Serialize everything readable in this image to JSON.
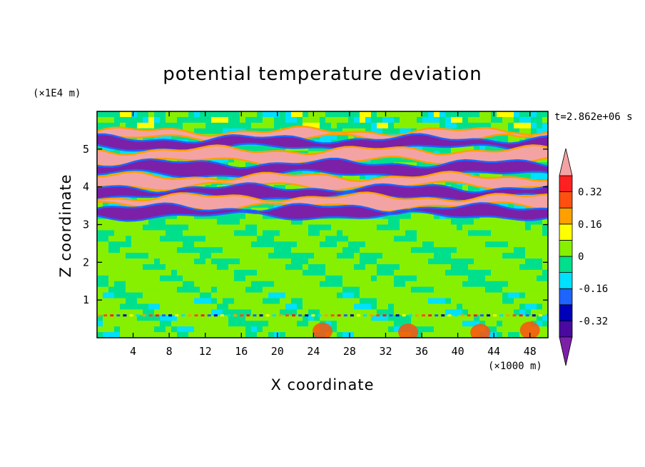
{
  "chart_data": {
    "type": "contour",
    "title": "potential temperature deviation",
    "xlabel": "X coordinate",
    "ylabel": "Z coordinate",
    "x_unit": "(×1000 m)",
    "y_unit": "(×1E4 m)",
    "time_label": "t=2.862e+06 s",
    "xlim": [
      0,
      50
    ],
    "ylim": [
      0,
      6
    ],
    "x_ticks": [
      4,
      8,
      12,
      16,
      20,
      24,
      28,
      32,
      36,
      40,
      44,
      48
    ],
    "y_ticks": [
      1,
      2,
      3,
      4,
      5
    ],
    "levels": [
      -0.4,
      -0.32,
      -0.24,
      -0.16,
      -0.08,
      0,
      0.08,
      0.16,
      0.24,
      0.32,
      0.4
    ],
    "colorbar_labels": [
      "0.32",
      "0.16",
      "0",
      "-0.16",
      "-0.32"
    ],
    "colorbar_label_values": [
      0.32,
      0.16,
      0,
      -0.16,
      -0.32
    ],
    "colors": {
      "under": "#7c20a8",
      "bins": [
        "#4a0aa0",
        "#0000bb",
        "#1e64ff",
        "#00e0ff",
        "#00e08c",
        "#86f000",
        "#ffff00",
        "#ffa000",
        "#ff5010",
        "#ff2020"
      ],
      "over": "#f4a3a4"
    },
    "bands": [
      {
        "z": [
          5.3,
          5.45
        ],
        "color": "over"
      },
      {
        "z": [
          5.05,
          5.25
        ],
        "color": "under"
      },
      {
        "z": [
          4.7,
          4.95
        ],
        "color": "over"
      },
      {
        "z": [
          4.35,
          4.6
        ],
        "color": "under"
      },
      {
        "z": [
          4.05,
          4.25
        ],
        "color": "over"
      },
      {
        "z": [
          3.75,
          3.95
        ],
        "color": "under"
      },
      {
        "z": [
          3.5,
          3.7
        ],
        "color": "over"
      },
      {
        "z": [
          3.25,
          3.42
        ],
        "color": "under"
      }
    ]
  }
}
